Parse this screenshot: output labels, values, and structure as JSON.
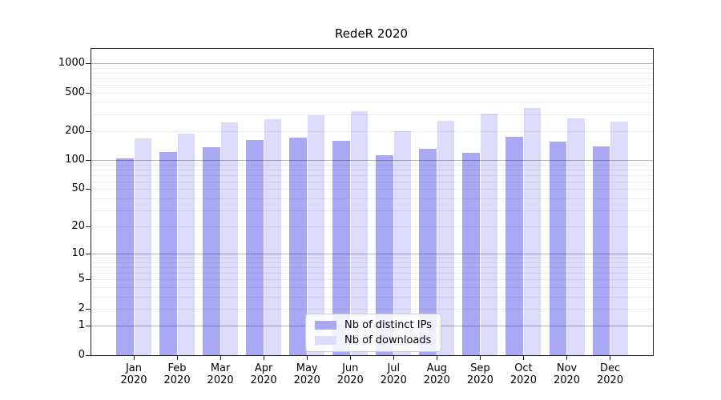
{
  "figure": {
    "title": "RedeR 2020"
  },
  "legend": {
    "position": "lower center",
    "items": [
      {
        "label": "Nb of distinct IPs",
        "color": "#a8a8f5"
      },
      {
        "label": "Nb of downloads",
        "color": "#dcdcfa"
      }
    ]
  },
  "chart_data": {
    "type": "bar",
    "title": "RedeR 2020",
    "xlabel": "",
    "ylabel": "",
    "grid": true,
    "legend_position": "lower center",
    "y_scale": "log10(value+1)",
    "y_axis_top_logunits": 3.15,
    "categories": [
      "Jan 2020",
      "Feb 2020",
      "Mar 2020",
      "Apr 2020",
      "May 2020",
      "Jun 2020",
      "Jul 2020",
      "Aug 2020",
      "Sep 2020",
      "Oct 2020",
      "Nov 2020",
      "Dec 2020"
    ],
    "y_ticks_labeled": [
      0,
      1,
      2,
      5,
      10,
      20,
      50,
      100,
      200,
      500,
      1000
    ],
    "y_ticks_major": [
      1,
      10,
      100,
      1000
    ],
    "y_gridlines_minor": [
      3,
      4,
      6,
      7,
      8,
      9,
      30,
      40,
      60,
      70,
      80,
      90,
      300,
      400,
      600,
      700,
      800,
      900
    ],
    "series": [
      {
        "name": "Nb of distinct IPs",
        "color": "#a8a8f5",
        "values": [
          105,
          121,
          136,
          162,
          170,
          160,
          113,
          132,
          120,
          176,
          155,
          139
        ]
      },
      {
        "name": "Nb of downloads",
        "color": "#dcdcfa",
        "values": [
          168,
          190,
          245,
          268,
          290,
          324,
          200,
          254,
          305,
          346,
          270,
          249
        ]
      }
    ]
  }
}
